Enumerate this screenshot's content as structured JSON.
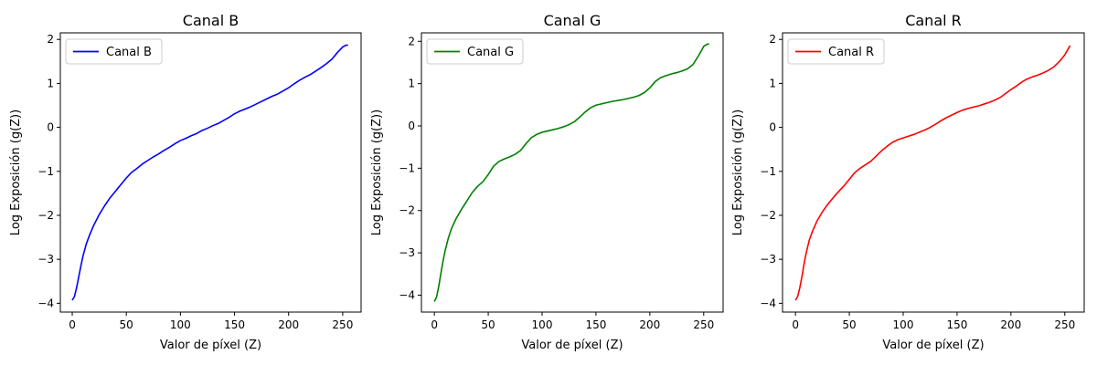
{
  "chart_data": [
    {
      "type": "line",
      "title": "Canal B",
      "xlabel": "Valor de píxel (Z)",
      "ylabel": "Log Exposición (g(Z))",
      "xlim": [
        -11,
        267
      ],
      "ylim": [
        -4.2,
        2.15
      ],
      "xticks": [
        0,
        50,
        100,
        150,
        200,
        250
      ],
      "yticks": [
        -4,
        -3,
        -2,
        -1,
        0,
        1,
        2
      ],
      "xtick_labels": [
        "0",
        "50",
        "100",
        "150",
        "200",
        "250"
      ],
      "ytick_labels": [
        "−4",
        "−3",
        "−2",
        "−1",
        "0",
        "1",
        "2"
      ],
      "legend_position": "top-left",
      "grid": false,
      "series": [
        {
          "name": "Canal B",
          "color": "#0000ff",
          "x": [
            0,
            2,
            4,
            6,
            8,
            10,
            13,
            16,
            20,
            25,
            30,
            35,
            40,
            45,
            50,
            55,
            60,
            65,
            70,
            75,
            80,
            85,
            90,
            95,
            100,
            105,
            110,
            115,
            120,
            125,
            130,
            135,
            140,
            145,
            150,
            155,
            160,
            165,
            170,
            175,
            180,
            185,
            190,
            195,
            200,
            205,
            210,
            215,
            220,
            225,
            230,
            235,
            240,
            245,
            250,
            253,
            255
          ],
          "y": [
            -3.93,
            -3.85,
            -3.65,
            -3.4,
            -3.15,
            -2.92,
            -2.65,
            -2.45,
            -2.22,
            -1.98,
            -1.78,
            -1.6,
            -1.45,
            -1.3,
            -1.15,
            -1.02,
            -0.93,
            -0.83,
            -0.75,
            -0.67,
            -0.6,
            -0.52,
            -0.45,
            -0.37,
            -0.3,
            -0.25,
            -0.19,
            -0.14,
            -0.07,
            -0.02,
            0.04,
            0.09,
            0.16,
            0.23,
            0.31,
            0.37,
            0.42,
            0.47,
            0.53,
            0.59,
            0.65,
            0.71,
            0.76,
            0.83,
            0.9,
            0.99,
            1.07,
            1.14,
            1.2,
            1.28,
            1.36,
            1.45,
            1.55,
            1.7,
            1.83,
            1.87,
            1.87
          ]
        }
      ]
    },
    {
      "type": "line",
      "title": "Canal G",
      "xlabel": "Valor de píxel (Z)",
      "ylabel": "Log Exposición (g(Z))",
      "xlim": [
        -12,
        268
      ],
      "ylim": [
        -4.4,
        2.2
      ],
      "xticks": [
        0,
        50,
        100,
        150,
        200,
        250
      ],
      "yticks": [
        -4,
        -3,
        -2,
        -1,
        0,
        1,
        2
      ],
      "xtick_labels": [
        "0",
        "50",
        "100",
        "150",
        "200",
        "250"
      ],
      "ytick_labels": [
        "−4",
        "−3",
        "−2",
        "−1",
        "0",
        "1",
        "2"
      ],
      "legend_position": "top-left",
      "grid": false,
      "series": [
        {
          "name": "Canal G",
          "color": "#008000",
          "x": [
            0,
            2,
            4,
            6,
            8,
            10,
            13,
            16,
            20,
            25,
            30,
            35,
            40,
            45,
            50,
            55,
            60,
            65,
            70,
            75,
            80,
            85,
            90,
            95,
            100,
            105,
            110,
            115,
            120,
            125,
            130,
            135,
            140,
            145,
            150,
            155,
            160,
            165,
            170,
            175,
            180,
            185,
            190,
            195,
            200,
            205,
            210,
            215,
            220,
            225,
            230,
            235,
            240,
            245,
            250,
            253,
            255
          ],
          "y": [
            -4.15,
            -4.05,
            -3.8,
            -3.5,
            -3.2,
            -2.95,
            -2.65,
            -2.42,
            -2.2,
            -1.98,
            -1.78,
            -1.58,
            -1.43,
            -1.32,
            -1.15,
            -0.95,
            -0.84,
            -0.78,
            -0.73,
            -0.67,
            -0.58,
            -0.42,
            -0.28,
            -0.2,
            -0.15,
            -0.12,
            -0.09,
            -0.06,
            -0.02,
            0.03,
            0.1,
            0.21,
            0.33,
            0.43,
            0.49,
            0.52,
            0.55,
            0.58,
            0.6,
            0.62,
            0.65,
            0.68,
            0.72,
            0.79,
            0.9,
            1.05,
            1.14,
            1.19,
            1.23,
            1.26,
            1.3,
            1.35,
            1.45,
            1.65,
            1.88,
            1.93,
            1.94
          ]
        }
      ]
    },
    {
      "type": "line",
      "title": "Canal R",
      "xlabel": "Valor de píxel (Z)",
      "ylabel": "Log Exposición (g(Z))",
      "xlim": [
        -12,
        268
      ],
      "ylim": [
        -4.2,
        2.15
      ],
      "xticks": [
        0,
        50,
        100,
        150,
        200,
        250
      ],
      "yticks": [
        -4,
        -3,
        -2,
        -1,
        0,
        1,
        2
      ],
      "xtick_labels": [
        "0",
        "50",
        "100",
        "150",
        "200",
        "250"
      ],
      "ytick_labels": [
        "−4",
        "−3",
        "−2",
        "−1",
        "0",
        "1",
        "2"
      ],
      "legend_position": "top-left",
      "grid": false,
      "series": [
        {
          "name": "Canal R",
          "color": "#ff0000",
          "x": [
            0,
            2,
            4,
            6,
            8,
            10,
            13,
            16,
            20,
            25,
            30,
            35,
            40,
            45,
            50,
            55,
            60,
            65,
            70,
            75,
            80,
            85,
            90,
            95,
            100,
            105,
            110,
            115,
            120,
            125,
            130,
            135,
            140,
            145,
            150,
            155,
            160,
            165,
            170,
            175,
            180,
            185,
            190,
            195,
            200,
            205,
            210,
            215,
            220,
            225,
            230,
            235,
            240,
            245,
            250,
            253,
            255
          ],
          "y": [
            -3.93,
            -3.85,
            -3.65,
            -3.4,
            -3.1,
            -2.85,
            -2.55,
            -2.35,
            -2.13,
            -1.92,
            -1.75,
            -1.6,
            -1.46,
            -1.33,
            -1.18,
            -1.03,
            -0.93,
            -0.85,
            -0.77,
            -0.65,
            -0.53,
            -0.43,
            -0.34,
            -0.28,
            -0.24,
            -0.2,
            -0.16,
            -0.11,
            -0.06,
            0.0,
            0.07,
            0.15,
            0.22,
            0.28,
            0.34,
            0.39,
            0.43,
            0.46,
            0.49,
            0.53,
            0.57,
            0.62,
            0.68,
            0.77,
            0.86,
            0.94,
            1.03,
            1.1,
            1.15,
            1.19,
            1.24,
            1.3,
            1.38,
            1.5,
            1.65,
            1.78,
            1.86
          ]
        }
      ]
    }
  ]
}
